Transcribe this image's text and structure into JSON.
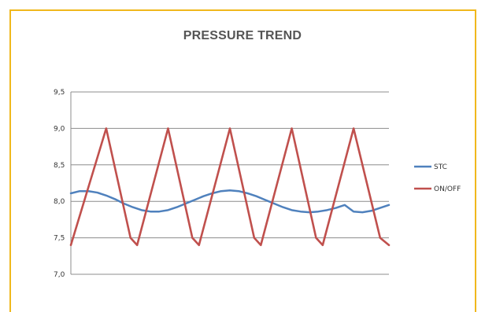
{
  "chart_data": {
    "type": "line",
    "title": "PRESSURE TREND",
    "xlabel": "",
    "ylabel": "",
    "ylim": [
      7.0,
      9.5
    ],
    "yticks": [
      "7,0",
      "7,5",
      "8,0",
      "8,5",
      "9,0",
      "9,5"
    ],
    "ytick_values": [
      7.0,
      7.5,
      8.0,
      8.5,
      9.0,
      9.5
    ],
    "xlim": [
      0,
      72
    ],
    "grid": true,
    "legend": "right",
    "series": [
      {
        "name": "STC",
        "color": "#4f81bd",
        "x": [
          0,
          2,
          4,
          6,
          8,
          10,
          12,
          14,
          16,
          18,
          20,
          22,
          24,
          26,
          28,
          30,
          32,
          34,
          36,
          38,
          40,
          42,
          44,
          46,
          48,
          50,
          52,
          54,
          56,
          58,
          60,
          62,
          64,
          66,
          68,
          70,
          72
        ],
        "values": [
          8.11,
          8.14,
          8.14,
          8.12,
          8.08,
          8.03,
          7.97,
          7.92,
          7.88,
          7.86,
          7.86,
          7.88,
          7.92,
          7.97,
          8.02,
          8.07,
          8.11,
          8.14,
          8.15,
          8.14,
          8.11,
          8.07,
          8.02,
          7.97,
          7.92,
          7.88,
          7.86,
          7.85,
          7.86,
          7.88,
          7.91,
          7.95,
          7.86,
          7.85,
          7.87,
          7.91,
          7.95
        ]
      },
      {
        "name": "ON/OFF",
        "color": "#c0504d",
        "x": [
          0,
          8,
          13.5,
          15,
          22,
          27.5,
          29,
          36,
          41.5,
          43,
          50,
          55.5,
          57,
          64,
          70,
          72
        ],
        "values": [
          7.4,
          9.0,
          7.5,
          7.4,
          9.0,
          7.5,
          7.4,
          9.0,
          7.5,
          7.4,
          9.0,
          7.5,
          7.4,
          9.0,
          7.5,
          7.4
        ]
      }
    ]
  }
}
